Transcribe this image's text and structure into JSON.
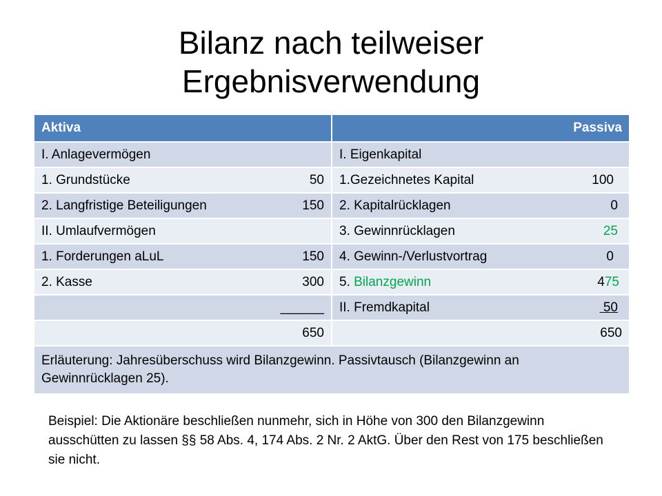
{
  "title_line1": "Bilanz nach teilweiser",
  "title_line2": "Ergebnisverwendung",
  "header": {
    "left": "Aktiva",
    "right": "Passiva"
  },
  "rows": [
    {
      "left_label": "I. Anlagevermögen",
      "left_value": "",
      "right_label": "I. Eigenkapital",
      "right_value": ""
    },
    {
      "left_label": "1. Grundstücke",
      "left_value": "50",
      "right_label": "1.Gezeichnetes Kapital",
      "right_value": "100"
    },
    {
      "left_label": "2. Langfristige Beteiligungen",
      "left_value": "150",
      "right_label": "2. Kapitalrücklagen",
      "right_value": "0"
    },
    {
      "left_label": "II. Umlaufvermögen",
      "left_value": "",
      "right_label": "3. Gewinnrücklagen",
      "right_value": "25"
    },
    {
      "left_label": "1. Forderungen aLuL",
      "left_value": "150",
      "right_label": "4. Gewinn-/Verlustvortrag",
      "right_value": "0"
    },
    {
      "left_label": "2. Kasse",
      "left_value": "300",
      "right_label_prefix": "5. ",
      "right_label_green": "Bilanzgewinn",
      "right_value_black": "4",
      "right_value_green": "75"
    },
    {
      "left_value": "______",
      "right_label": "II. Fremdkapital",
      "right_value": "50"
    },
    {
      "left_value": "650",
      "right_value": "650"
    }
  ],
  "note": "Erläuterung: Jahresüberschuss wird Bilanzgewinn. Passivtausch (Bilanzgewinn an Gewinnrücklagen 25).",
  "example": "Beispiel: Die Aktionäre beschließen nunmehr, sich in Höhe von 300 den Bilanzgewinn ausschütten zu lassen §§ 58 Abs. 4, 174 Abs. 2 Nr. 2 AktG. Über den Rest von 175 beschließen sie nicht.",
  "colors": {
    "header": "#4f81bd",
    "row_dark": "#d0d8e8",
    "row_light": "#e9edf4",
    "highlight": "#00a650"
  }
}
